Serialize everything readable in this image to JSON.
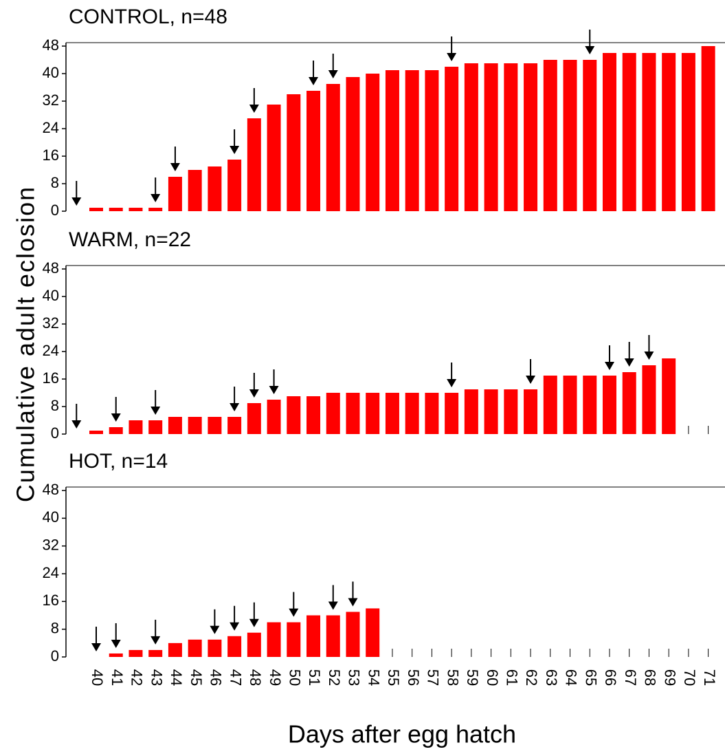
{
  "ylabel": "Cumulative adult eclosion",
  "xlabel": "Days after egg hatch",
  "categories": [
    "40",
    "41",
    "42",
    "43",
    "44",
    "45",
    "46",
    "47",
    "48",
    "49",
    "50",
    "51",
    "52",
    "53",
    "54",
    "55",
    "56",
    "57",
    "58",
    "59",
    "60",
    "61",
    "62",
    "63",
    "64",
    "65",
    "66",
    "67",
    "68",
    "69",
    "70",
    "71"
  ],
  "chart_data": [
    {
      "type": "bar",
      "title": "CONTROL,  n=48",
      "color": "#ff0000",
      "values": [
        1,
        1,
        1,
        1,
        10,
        12,
        13,
        15,
        27,
        31,
        34,
        35,
        37,
        39,
        40,
        41,
        41,
        41,
        42,
        43,
        43,
        43,
        43,
        44,
        44,
        44,
        46,
        46,
        46,
        46,
        46,
        48
      ],
      "arrows": [
        39,
        43,
        44,
        47,
        48,
        51,
        52,
        58,
        65
      ],
      "ylim": [
        0,
        49
      ],
      "yticks": [
        0,
        8,
        16,
        24,
        32,
        40,
        48
      ]
    },
    {
      "type": "bar",
      "title": "WARM, n=22",
      "color": "#ff0000",
      "values": [
        1,
        2,
        4,
        4,
        5,
        5,
        5,
        5,
        9,
        10,
        11,
        11,
        12,
        12,
        12,
        12,
        12,
        12,
        12,
        13,
        13,
        13,
        13,
        17,
        17,
        17,
        17,
        18,
        20,
        22,
        0,
        0
      ],
      "arrows": [
        39,
        41,
        43,
        47,
        48,
        49,
        58,
        62,
        66,
        67,
        68
      ],
      "ylim": [
        0,
        49
      ],
      "yticks": [
        0,
        8,
        16,
        24,
        32,
        40,
        48
      ]
    },
    {
      "type": "bar",
      "title": "HOT, n=14",
      "color": "#ff0000",
      "values": [
        null,
        1,
        2,
        2,
        4,
        5,
        5,
        6,
        7,
        10,
        10,
        12,
        12,
        13,
        14,
        0,
        0,
        0,
        0,
        0,
        0,
        0,
        0,
        0,
        0,
        0,
        0,
        0,
        0,
        0,
        0,
        0
      ],
      "arrows": [
        40,
        41,
        43,
        46,
        47,
        48,
        50,
        52,
        53
      ],
      "ylim": [
        0,
        49
      ],
      "yticks": [
        0,
        8,
        16,
        24,
        32,
        40,
        48
      ]
    }
  ]
}
